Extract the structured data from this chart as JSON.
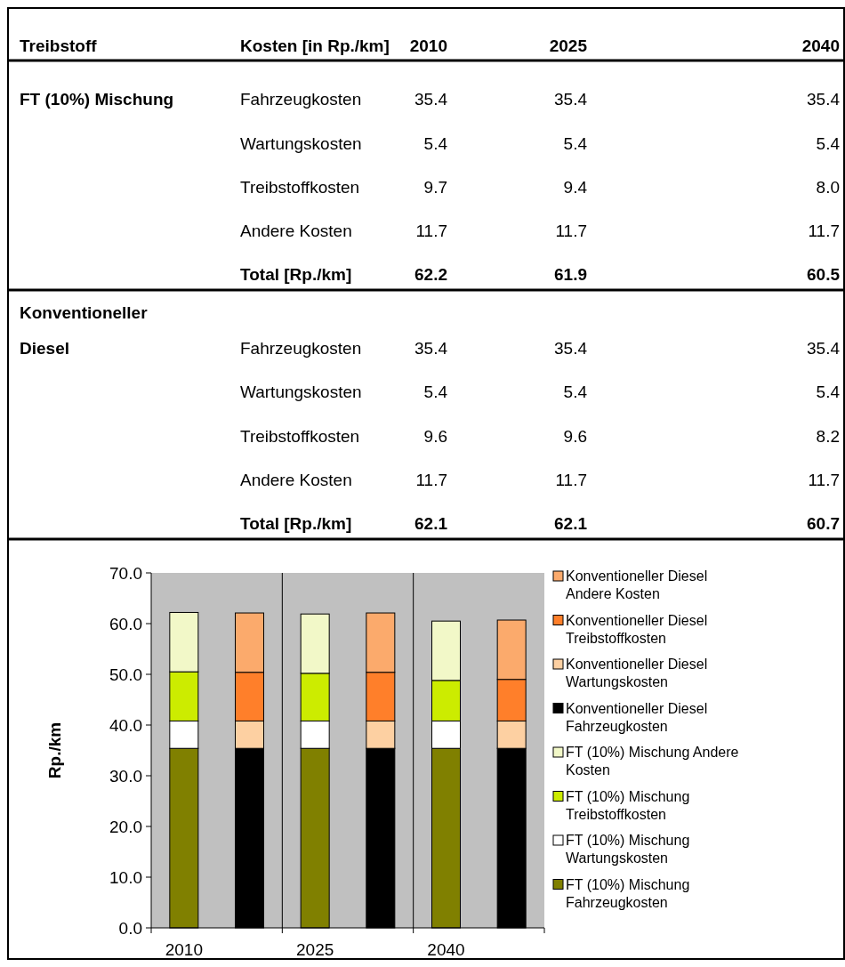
{
  "chart_data": [
    {
      "type": "other",
      "annotations": [
        "Treibstoff",
        "Kosten [in Rp./km]",
        "2010",
        "2025",
        "2040",
        "FT (10%) Mischung",
        "Fahrzeugkosten",
        "35.4",
        "35.4",
        "35.4",
        "Wartungskosten",
        "5.4",
        "5.4",
        "5.4",
        "Treibstoffkosten",
        "9.7",
        "9.4",
        "8.0",
        "Andere Kosten",
        "11.7",
        "11.7",
        "11.7",
        "Total [Rp./km]",
        "62.2",
        "61.9",
        "60.5",
        "Konventioneller Diesel",
        "Fahrzeugkosten",
        "35.4",
        "35.4",
        "35.4",
        "Wartungskosten",
        "5.4",
        "5.4",
        "5.4",
        "Treibstoffkosten",
        "9.6",
        "9.6",
        "8.2",
        "Andere Kosten",
        "11.7",
        "11.7",
        "11.7",
        "Total [Rp./km]",
        "62.1",
        "62.1",
        "60.7"
      ]
    },
    {
      "type": "bar",
      "stacked": true,
      "categories": [
        "2010",
        null,
        "2025",
        null,
        "2040",
        null
      ],
      "series": [
        {
          "name": "FT (10%) Mischung Fahrzeugkosten",
          "color": "#808000",
          "values": [
            35.4,
            null,
            35.4,
            null,
            35.4,
            null
          ]
        },
        {
          "name": "FT (10%) Mischung Wartungskosten",
          "color": "#ffffff",
          "values": [
            5.4,
            null,
            5.4,
            null,
            5.4,
            null
          ]
        },
        {
          "name": "FT (10%) Mischung Treibstoffkosten",
          "color": "#ccec00",
          "values": [
            9.7,
            null,
            9.4,
            null,
            8.0,
            null
          ]
        },
        {
          "name": "FT (10%) Mischung Andere Kosten",
          "color": "#f2f8c8",
          "values": [
            11.7,
            null,
            11.7,
            null,
            11.7,
            null
          ]
        },
        {
          "name": "Konventioneller Diesel Fahrzeugkosten",
          "color": "#000000",
          "values": [
            null,
            35.4,
            null,
            35.4,
            null,
            35.4
          ]
        },
        {
          "name": "Konventioneller Diesel Wartungskosten",
          "color": "#fdd0a2",
          "values": [
            null,
            5.4,
            null,
            5.4,
            null,
            5.4
          ]
        },
        {
          "name": "Konventioneller Diesel Treibstoffkosten",
          "color": "#ff7f2a",
          "values": [
            null,
            9.6,
            null,
            9.6,
            null,
            8.2
          ]
        },
        {
          "name": "Konventioneller Diesel Andere Kosten",
          "color": "#fbaa6c",
          "values": [
            null,
            11.7,
            null,
            11.7,
            null,
            11.7
          ]
        }
      ],
      "ylabel": "Rp./km",
      "ylim": [
        0,
        70
      ],
      "yticks": [
        {
          "value": 0,
          "label": "0.0"
        },
        {
          "value": 10,
          "label": "10.0"
        },
        {
          "value": 20,
          "label": "20.0"
        },
        {
          "value": 30,
          "label": "30.0"
        },
        {
          "value": 40,
          "label": "40.0"
        },
        {
          "value": 50,
          "label": "50.0"
        },
        {
          "value": 60,
          "label": "60.0"
        },
        {
          "value": 70,
          "label": "70.0"
        }
      ],
      "grid": "x",
      "legend": "right"
    }
  ]
}
